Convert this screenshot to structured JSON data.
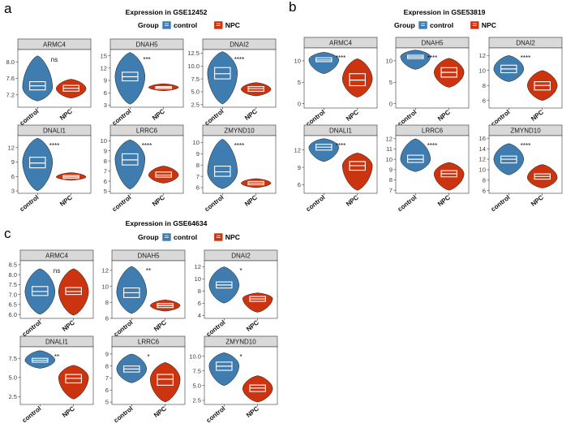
{
  "chart_data": [
    {
      "type": "violin",
      "panel": "a",
      "title": "Expression in GSE12452",
      "legend": {
        "title": "Group",
        "entries": [
          {
            "label": "control",
            "color": "#3f7db1"
          },
          {
            "label": "NPC",
            "color": "#cc3410"
          }
        ]
      },
      "categories": [
        "control",
        "NPC"
      ],
      "subplots": [
        {
          "gene": "ARMC4",
          "yticks": [
            7.2,
            7.6,
            8.0
          ],
          "ylim": [
            6.9,
            8.3
          ],
          "sig": "ns",
          "control": {
            "min": 7.05,
            "max": 8.15,
            "q1": 7.32,
            "median": 7.42,
            "q3": 7.52,
            "peak": 7.38
          },
          "npc": {
            "min": 7.12,
            "max": 7.58,
            "q1": 7.29,
            "median": 7.36,
            "q3": 7.43,
            "peak": 7.35
          }
        },
        {
          "gene": "DNAH5",
          "yticks": [
            3,
            6,
            9,
            12,
            15
          ],
          "ylim": [
            2.5,
            16.5
          ],
          "sig": "***",
          "control": {
            "min": 3.2,
            "max": 15.8,
            "q1": 8.9,
            "median": 9.9,
            "q3": 11.0,
            "peak": 10.0
          },
          "npc": {
            "min": 6.5,
            "max": 8.2,
            "q1": 7.0,
            "median": 7.3,
            "q3": 7.5,
            "peak": 7.3
          }
        },
        {
          "gene": "DNAI2",
          "yticks": [
            2.5,
            5.0,
            7.5,
            10.0,
            12.5
          ],
          "ylim": [
            2.0,
            13.2
          ],
          "sig": "****",
          "control": {
            "min": 2.6,
            "max": 12.8,
            "q1": 7.5,
            "median": 8.5,
            "q3": 9.7,
            "peak": 8.7
          },
          "npc": {
            "min": 4.2,
            "max": 6.8,
            "q1": 5.1,
            "median": 5.6,
            "q3": 6.0,
            "peak": 5.5
          }
        },
        {
          "gene": "DNALI1",
          "yticks": [
            3,
            6,
            9,
            12
          ],
          "ylim": [
            2.5,
            14.5
          ],
          "sig": "****",
          "control": {
            "min": 3.0,
            "max": 14.0,
            "q1": 7.8,
            "median": 8.8,
            "q3": 10.0,
            "peak": 9.0
          },
          "npc": {
            "min": 5.2,
            "max": 6.8,
            "q1": 5.6,
            "median": 5.9,
            "q3": 6.2,
            "peak": 5.9
          }
        },
        {
          "gene": "LRRC6",
          "yticks": [
            5,
            6,
            7,
            8,
            9,
            10
          ],
          "ylim": [
            4.8,
            10.5
          ],
          "sig": "****",
          "control": {
            "min": 5.2,
            "max": 10.1,
            "q1": 7.6,
            "median": 8.1,
            "q3": 8.7,
            "peak": 8.2
          },
          "npc": {
            "min": 5.8,
            "max": 7.5,
            "q1": 6.4,
            "median": 6.6,
            "q3": 6.9,
            "peak": 6.6
          }
        },
        {
          "gene": "ZMYND10",
          "yticks": [
            6,
            7,
            8,
            9,
            10
          ],
          "ylim": [
            5.5,
            10.6
          ],
          "sig": "****",
          "control": {
            "min": 5.9,
            "max": 10.3,
            "q1": 7.0,
            "median": 7.4,
            "q3": 7.9,
            "peak": 7.4
          },
          "npc": {
            "min": 6.0,
            "max": 6.8,
            "q1": 6.25,
            "median": 6.4,
            "q3": 6.55,
            "peak": 6.4
          }
        }
      ]
    },
    {
      "type": "violin",
      "panel": "b",
      "title": "Expression in GSE53819",
      "legend": {
        "title": "Group",
        "entries": [
          {
            "label": "control",
            "color": "#3f7db1"
          },
          {
            "label": "NPC",
            "color": "#cc3410"
          }
        ]
      },
      "categories": [
        "control",
        "NPC"
      ],
      "subplots": [
        {
          "gene": "ARMC4",
          "yticks": [
            0,
            5,
            10
          ],
          "ylim": [
            -1,
            13
          ],
          "sig": "****",
          "control": {
            "min": 7.0,
            "max": 12.0,
            "q1": 9.8,
            "median": 10.2,
            "q3": 10.7,
            "peak": 10.3
          },
          "npc": {
            "min": 1.5,
            "max": 10.5,
            "q1": 4.2,
            "median": 5.5,
            "q3": 7.0,
            "peak": 5.8
          }
        },
        {
          "gene": "DNAH5",
          "yticks": [
            0,
            5,
            10
          ],
          "ylim": [
            -1,
            13
          ],
          "sig": "****",
          "control": {
            "min": 8.0,
            "max": 12.5,
            "q1": 10.5,
            "median": 10.9,
            "q3": 11.3,
            "peak": 11.0
          },
          "npc": {
            "min": 3.8,
            "max": 10.6,
            "q1": 6.2,
            "median": 7.3,
            "q3": 8.4,
            "peak": 7.3
          }
        },
        {
          "gene": "DNAI2",
          "yticks": [
            6,
            8,
            10,
            12
          ],
          "ylim": [
            5.0,
            13.0
          ],
          "sig": "****",
          "control": {
            "min": 8.5,
            "max": 12.0,
            "q1": 9.7,
            "median": 10.2,
            "q3": 10.7,
            "peak": 10.2
          },
          "npc": {
            "min": 6.0,
            "max": 10.0,
            "q1": 7.4,
            "median": 8.0,
            "q3": 8.5,
            "peak": 8.0
          }
        },
        {
          "gene": "DNALI1",
          "yticks": [
            6,
            9,
            12
          ],
          "ylim": [
            4.5,
            14.5
          ],
          "sig": "****",
          "control": {
            "min": 10.0,
            "max": 14.0,
            "q1": 12.0,
            "median": 12.5,
            "q3": 13.0,
            "peak": 12.5
          },
          "npc": {
            "min": 5.0,
            "max": 11.5,
            "q1": 8.5,
            "median": 9.3,
            "q3": 10.0,
            "peak": 9.3
          }
        },
        {
          "gene": "LRRC6",
          "yticks": [
            7,
            8,
            9,
            10,
            11,
            12
          ],
          "ylim": [
            6.7,
            12.3
          ],
          "sig": "****",
          "control": {
            "min": 8.8,
            "max": 12.0,
            "q1": 9.7,
            "median": 10.0,
            "q3": 10.4,
            "peak": 10.0
          },
          "npc": {
            "min": 7.0,
            "max": 9.7,
            "q1": 8.3,
            "median": 8.6,
            "q3": 8.9,
            "peak": 8.6
          }
        },
        {
          "gene": "ZMYND10",
          "yticks": [
            6,
            8,
            10,
            12,
            14,
            16
          ],
          "ylim": [
            5.5,
            16.5
          ],
          "sig": "****",
          "control": {
            "min": 9.0,
            "max": 15.0,
            "q1": 11.3,
            "median": 12.0,
            "q3": 12.6,
            "peak": 12.0
          },
          "npc": {
            "min": 6.5,
            "max": 11.0,
            "q1": 8.2,
            "median": 8.7,
            "q3": 9.2,
            "peak": 8.5
          }
        }
      ]
    },
    {
      "type": "violin",
      "panel": "c",
      "title": "Expression in GSE64634",
      "legend": {
        "title": "Group",
        "entries": [
          {
            "label": "control",
            "color": "#3f7db1"
          },
          {
            "label": "NPC",
            "color": "#cc3410"
          }
        ]
      },
      "categories": [
        "control",
        "NPC"
      ],
      "subplots": [
        {
          "gene": "ARMC4",
          "yticks": [
            6.0,
            6.5,
            7.0,
            7.5,
            8.0,
            8.5
          ],
          "ylim": [
            5.8,
            8.7
          ],
          "sig": "ns",
          "control": {
            "min": 6.0,
            "max": 8.3,
            "q1": 6.95,
            "median": 7.15,
            "q3": 7.4,
            "peak": 7.15
          },
          "npc": {
            "min": 5.95,
            "max": 8.3,
            "q1": 7.0,
            "median": 7.15,
            "q3": 7.35,
            "peak": 7.15
          }
        },
        {
          "gene": "DNAH5",
          "yticks": [
            6,
            8,
            10,
            12
          ],
          "ylim": [
            6.0,
            13.2
          ],
          "sig": "**",
          "control": {
            "min": 6.6,
            "max": 12.5,
            "q1": 8.6,
            "median": 9.2,
            "q3": 9.8,
            "peak": 9.3
          },
          "npc": {
            "min": 6.9,
            "max": 8.3,
            "q1": 7.35,
            "median": 7.6,
            "q3": 7.85,
            "peak": 7.6
          }
        },
        {
          "gene": "DNAI2",
          "yticks": [
            4,
            6,
            8,
            10,
            12
          ],
          "ylim": [
            3.5,
            13.0
          ],
          "sig": "*",
          "control": {
            "min": 6.0,
            "max": 12.0,
            "q1": 8.5,
            "median": 9.0,
            "q3": 9.5,
            "peak": 9.0
          },
          "npc": {
            "min": 4.5,
            "max": 7.7,
            "q1": 6.3,
            "median": 6.7,
            "q3": 7.1,
            "peak": 6.8
          }
        },
        {
          "gene": "DNALI1",
          "yticks": [
            2.5,
            5.0,
            7.5
          ],
          "ylim": [
            1.5,
            9.0
          ],
          "sig": "**",
          "control": {
            "min": 6.2,
            "max": 8.5,
            "q1": 7.0,
            "median": 7.25,
            "q3": 7.5,
            "peak": 7.25
          },
          "npc": {
            "min": 2.2,
            "max": 6.6,
            "q1": 4.3,
            "median": 4.9,
            "q3": 5.4,
            "peak": 5.0
          }
        },
        {
          "gene": "LRRC6",
          "yticks": [
            5,
            6,
            7,
            8,
            9
          ],
          "ylim": [
            4.8,
            9.6
          ],
          "sig": "*",
          "control": {
            "min": 6.6,
            "max": 9.0,
            "q1": 7.5,
            "median": 7.75,
            "q3": 8.0,
            "peak": 7.75
          },
          "npc": {
            "min": 5.0,
            "max": 8.3,
            "q1": 6.4,
            "median": 6.9,
            "q3": 7.3,
            "peak": 6.9
          }
        },
        {
          "gene": "ZMYND10",
          "yticks": [
            2.5,
            5.0,
            7.5,
            10.0
          ],
          "ylim": [
            1.8,
            11.6
          ],
          "sig": "*",
          "control": {
            "min": 5.0,
            "max": 10.6,
            "q1": 7.6,
            "median": 8.3,
            "q3": 9.0,
            "peak": 8.4
          },
          "npc": {
            "min": 2.2,
            "max": 6.7,
            "q1": 4.0,
            "median": 4.6,
            "q3": 5.1,
            "peak": 4.5
          }
        }
      ]
    }
  ]
}
